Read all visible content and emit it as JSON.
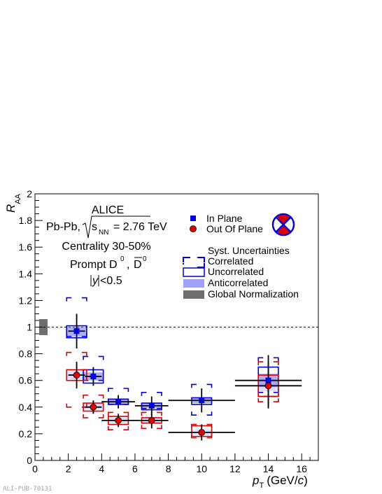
{
  "footer_code": "ALI-PUB-70131",
  "colors": {
    "in_plane": "#0000dd",
    "out_of_plane": "#dd0000",
    "anticorrelated": "#a0a0f8",
    "global_norm": "#6e6e6e"
  },
  "icon": "red-cross-in-blue-circle-icon",
  "chart_data": {
    "type": "scatter",
    "xlabel_main": "p",
    "xlabel_sub": "T",
    "xlabel_unit": "(GeV/",
    "xlabel_unit_c": "c",
    "xlabel_unit_close": ")",
    "ylabel_main": "R",
    "ylabel_sub": "AA",
    "xlim": [
      0,
      17
    ],
    "ylim": [
      0,
      2
    ],
    "xticks": [
      0,
      2,
      4,
      6,
      8,
      10,
      12,
      14,
      16
    ],
    "yticks": [
      0,
      0.2,
      0.4,
      0.6,
      0.8,
      1,
      1.2,
      1.4,
      1.6,
      1.8,
      2
    ],
    "ytick_labels": [
      "0",
      "0.2",
      "0.4",
      "0.6",
      "0.8",
      "1",
      "1.2",
      "1.4",
      "1.6",
      "1.8",
      "2"
    ],
    "reference_line": 1,
    "annotations": {
      "experiment": "ALICE",
      "system_prefix": "Pb-Pb,",
      "system_s": "s",
      "system_nn": "NN",
      "system_energy": "= 2.76 TeV",
      "centrality": "Centrality 30-50%",
      "prompt": "Prompt D",
      "d_zero": "0",
      "comma": ",",
      "dbar": "D",
      "dbar_zero": "0",
      "rapidity_y": "y",
      "rapidity_cut": "<0.5"
    },
    "legend": {
      "in_plane": "In Plane",
      "out_of_plane": "Out Of Plane",
      "syst_header": "Syst. Uncertainties",
      "correlated": "Correlated",
      "uncorrelated": "Uncorrelated",
      "anticorrelated": "Anticorrelated",
      "global_norm": "Global Normalization"
    },
    "global_norm_box": [
      0.94,
      1.06
    ],
    "series": [
      {
        "name": "In Plane",
        "points": [
          {
            "x": 2.5,
            "xlo": 2,
            "xhi": 3,
            "y": 0.97,
            "stat": 0.13,
            "unc": [
              0.92,
              1.01
            ],
            "corr": [
              0.93,
              1.22
            ],
            "anti": [
              0.93,
              1.0
            ]
          },
          {
            "x": 3.5,
            "xlo": 3,
            "xhi": 4,
            "y": 0.63,
            "stat": 0.07,
            "unc": [
              0.58,
              0.68
            ],
            "corr": [
              0.6,
              0.78
            ],
            "anti": [
              0.6,
              0.66
            ]
          },
          {
            "x": 5,
            "xlo": 4,
            "xhi": 6,
            "y": 0.44,
            "stat": 0.05,
            "unc": [
              0.42,
              0.46
            ],
            "corr": [
              0.42,
              0.54
            ],
            "anti": [
              0.42,
              0.46
            ]
          },
          {
            "x": 7,
            "xlo": 6,
            "xhi": 8,
            "y": 0.41,
            "stat": 0.07,
            "unc": [
              0.38,
              0.43
            ],
            "corr": [
              0.39,
              0.51
            ],
            "anti": [
              0.39,
              0.43
            ]
          },
          {
            "x": 10,
            "xlo": 8,
            "xhi": 12,
            "y": 0.45,
            "stat": 0.09,
            "unc": [
              0.42,
              0.47
            ],
            "corr": [
              0.34,
              0.57
            ],
            "anti": [
              0.43,
              0.47
            ]
          },
          {
            "x": 14,
            "xlo": 12,
            "xhi": 16,
            "y": 0.6,
            "stat": 0.19,
            "unc": [
              0.48,
              0.7
            ],
            "corr": [
              0.51,
              0.77
            ],
            "anti": [
              0.55,
              0.65
            ]
          }
        ]
      },
      {
        "name": "Out Of Plane",
        "points": [
          {
            "x": 2.5,
            "xlo": 2,
            "xhi": 3,
            "y": 0.64,
            "stat": 0.1,
            "unc": [
              0.6,
              0.68
            ],
            "corr": [
              0.4,
              0.81
            ],
            "anti": [
              0.61,
              0.67
            ]
          },
          {
            "x": 3.5,
            "xlo": 3,
            "xhi": 4,
            "y": 0.4,
            "stat": 0.05,
            "unc": [
              0.37,
              0.43
            ],
            "corr": [
              0.32,
              0.49
            ],
            "anti": [
              0.38,
              0.42
            ]
          },
          {
            "x": 5,
            "xlo": 4,
            "xhi": 6,
            "y": 0.3,
            "stat": 0.05,
            "unc": [
              0.27,
              0.33
            ],
            "corr": [
              0.23,
              0.36
            ],
            "anti": [
              0.28,
              0.32
            ]
          },
          {
            "x": 7,
            "xlo": 6,
            "xhi": 8,
            "y": 0.3,
            "stat": 0.06,
            "unc": [
              0.28,
              0.32
            ],
            "corr": [
              0.24,
              0.36
            ],
            "anti": [
              0.28,
              0.32
            ]
          },
          {
            "x": 10,
            "xlo": 8,
            "xhi": 12,
            "y": 0.21,
            "stat": 0.06,
            "unc": [
              0.18,
              0.26
            ],
            "corr": [
              0.17,
              0.27
            ],
            "anti": [
              0.19,
              0.23
            ]
          },
          {
            "x": 14,
            "xlo": 12,
            "xhi": 16,
            "y": 0.56,
            "stat": 0.17,
            "unc": [
              0.48,
              0.64
            ],
            "corr": [
              0.44,
              0.74
            ],
            "anti": [
              0.52,
              0.6
            ]
          }
        ]
      }
    ]
  }
}
